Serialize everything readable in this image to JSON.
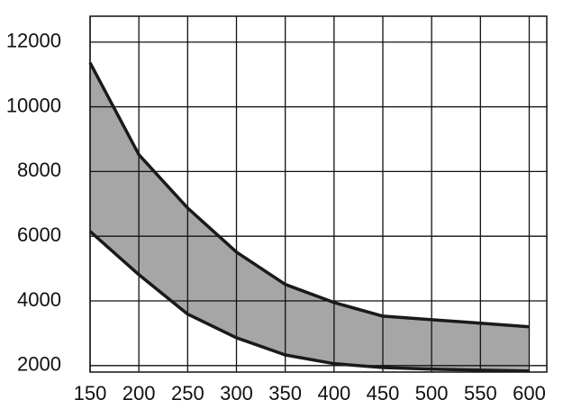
{
  "chart_data": {
    "type": "band",
    "x": [
      150,
      200,
      250,
      300,
      350,
      400,
      450,
      500,
      550,
      600
    ],
    "series": [
      {
        "color": "#1a1a1a",
        "values": [
          6150,
          4810,
          3590,
          2860,
          2330,
          2060,
          1940,
          1890,
          1860,
          1830
        ]
      },
      {
        "color": "#1a1a1a",
        "values": [
          11360,
          8520,
          6870,
          5510,
          4510,
          3950,
          3530,
          3420,
          3310,
          3200
        ]
      }
    ],
    "fill": "#a6a6a6",
    "xlim": [
      150,
      618
    ],
    "xticks": [
      150,
      200,
      250,
      300,
      350,
      400,
      450,
      500,
      550,
      600
    ],
    "ylim": [
      1800,
      12800
    ],
    "yticks": [
      2000,
      4000,
      6000,
      8000,
      10000,
      12000
    ],
    "grid": true
  }
}
